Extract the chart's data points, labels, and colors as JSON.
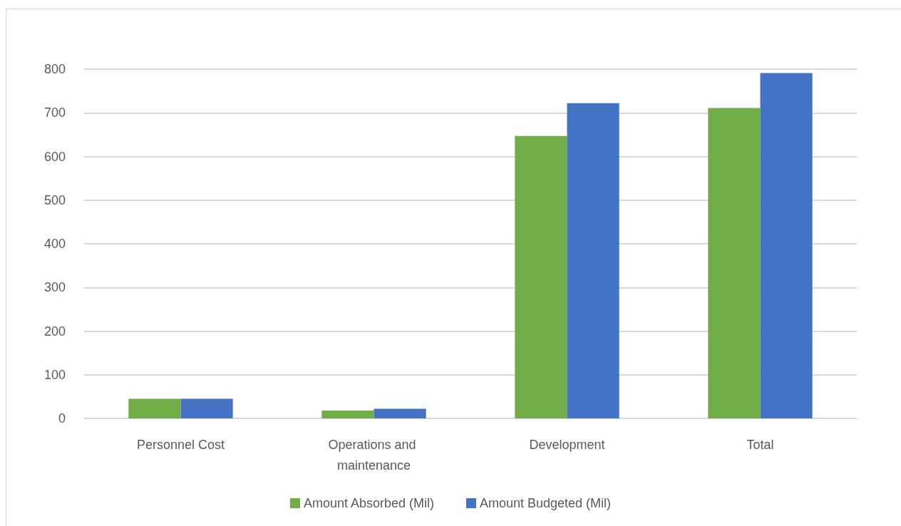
{
  "chart_data": {
    "type": "bar",
    "categories": [
      "Personnel Cost",
      "Operations and maintenance",
      "Development",
      "Total"
    ],
    "series": [
      {
        "name": "Amount Absorbed (Mil)",
        "color": "#70ad47",
        "values": [
          45,
          18,
          647,
          711
        ]
      },
      {
        "name": "Amount Budgeted (Mil)",
        "color": "#4472c4",
        "values": [
          45,
          22,
          722,
          791
        ]
      }
    ],
    "ylim": [
      0,
      800
    ],
    "yticks": [
      0,
      100,
      200,
      300,
      400,
      500,
      600,
      700,
      800
    ],
    "grid": "y",
    "legend": "bottom"
  }
}
